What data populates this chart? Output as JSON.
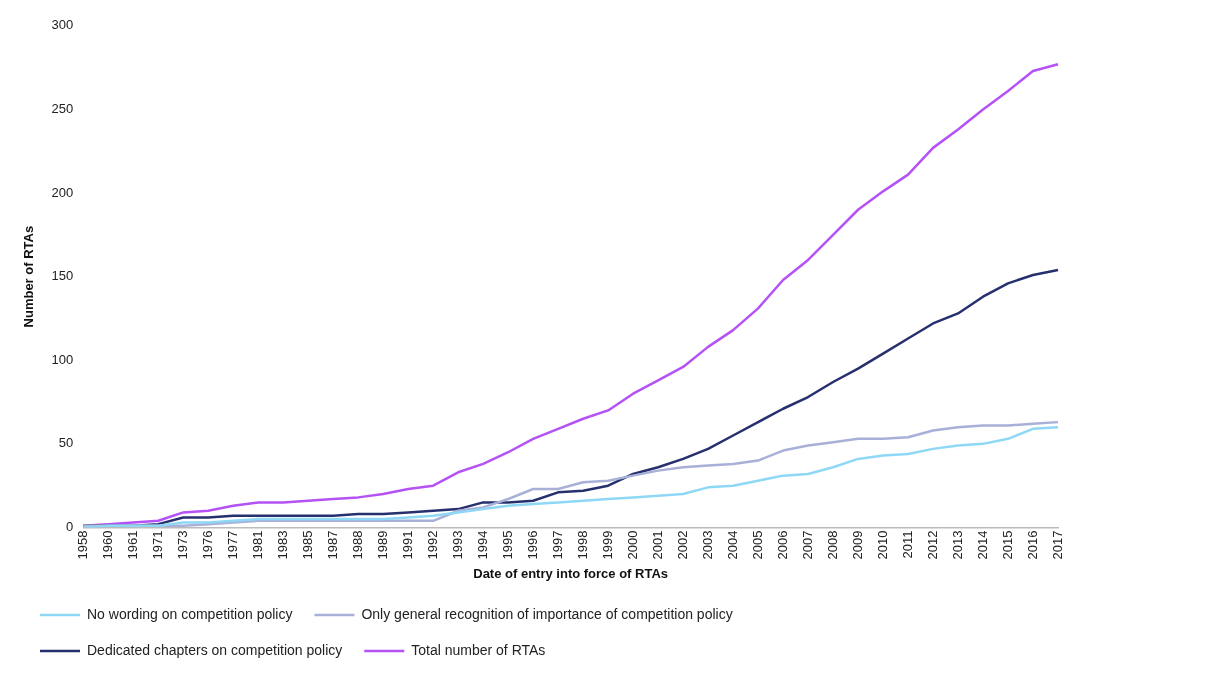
{
  "chart_data": {
    "type": "line",
    "xlabel": "Date of entry into force of RTAs",
    "ylabel": "Number of RTAs",
    "categories": [
      "1958",
      "1960",
      "1961",
      "1971",
      "1973",
      "1976",
      "1977",
      "1981",
      "1983",
      "1985",
      "1987",
      "1988",
      "1989",
      "1991",
      "1992",
      "1993",
      "1994",
      "1995",
      "1996",
      "1997",
      "1998",
      "1999",
      "2000",
      "2001",
      "2002",
      "2003",
      "2004",
      "2005",
      "2006",
      "2007",
      "2008",
      "2009",
      "2010",
      "2011",
      "2012",
      "2013",
      "2014",
      "2015",
      "2016",
      "2017"
    ],
    "ylim": [
      0,
      300
    ],
    "yticks": [
      0,
      50,
      100,
      150,
      200,
      250,
      300
    ],
    "grid": false,
    "legend": "bottom",
    "marker": "none",
    "line_style": "solid",
    "series": [
      {
        "name": "No wording on competition policy",
        "color": "#8fd8f5",
        "values": [
          0,
          1,
          1,
          1,
          3,
          3,
          4,
          5,
          5,
          5,
          5,
          5,
          5,
          6,
          7,
          9,
          11,
          13,
          14,
          15,
          16,
          17,
          18,
          19,
          20,
          24,
          25,
          28,
          31,
          32,
          36,
          41,
          43,
          44,
          47,
          49,
          50,
          53,
          59,
          60
        ]
      },
      {
        "name": "Only general recognition of importance of competition policy",
        "color": "#a9b0d8",
        "values": [
          1,
          1,
          1,
          1,
          1,
          2,
          3,
          4,
          4,
          4,
          4,
          4,
          4,
          4,
          4,
          10,
          12,
          17,
          23,
          23,
          27,
          28,
          31,
          34,
          36,
          37,
          38,
          40,
          46,
          49,
          51,
          53,
          53,
          54,
          58,
          60,
          61,
          61,
          62,
          63
        ]
      },
      {
        "name": "Dedicated chapters on competition policy",
        "color": "#27306e",
        "values": [
          1,
          1,
          1,
          2,
          6,
          6,
          7,
          7,
          7,
          7,
          7,
          8,
          8,
          9,
          10,
          11,
          15,
          15,
          16,
          21,
          22,
          25,
          32,
          36,
          41,
          47,
          55,
          63,
          71,
          78,
          87,
          95,
          104,
          113,
          122,
          128,
          138,
          146,
          151,
          154
        ]
      },
      {
        "name": "Total number of RTAs",
        "color": "#b452f5",
        "values": [
          1,
          2,
          3,
          4,
          9,
          10,
          13,
          15,
          15,
          16,
          17,
          18,
          20,
          23,
          25,
          33,
          38,
          45,
          53,
          59,
          65,
          70,
          80,
          88,
          96,
          108,
          118,
          131,
          148,
          160,
          175,
          190,
          201,
          211,
          227,
          238,
          250,
          261,
          273,
          277
        ]
      }
    ]
  }
}
